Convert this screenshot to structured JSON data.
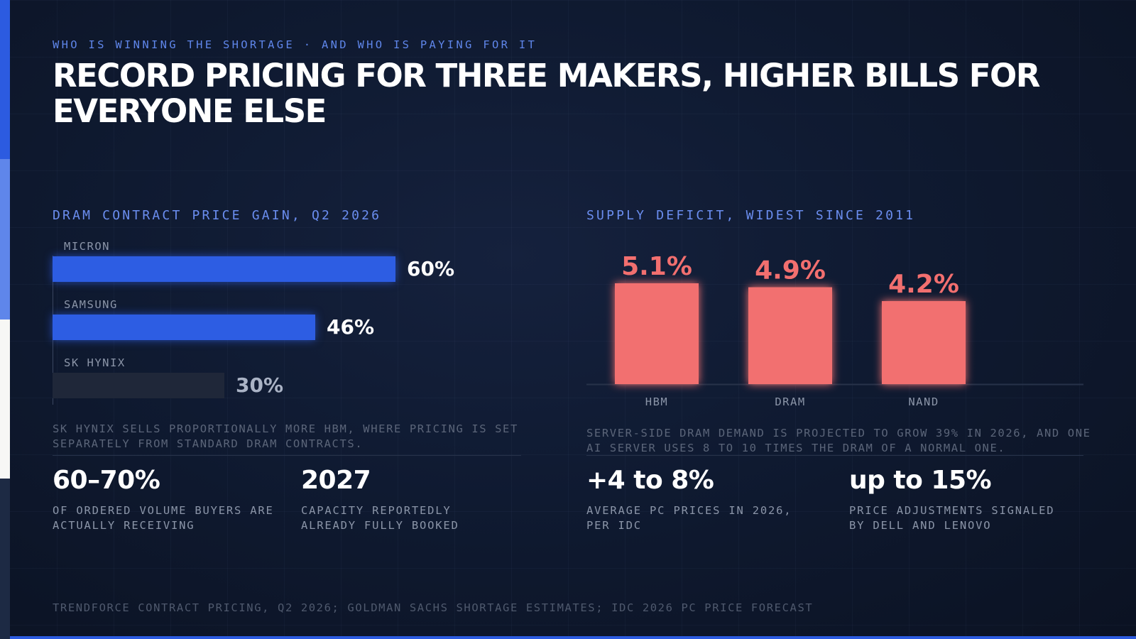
{
  "kicker": "WHO IS WINNING THE SHORTAGE · AND WHO IS PAYING FOR IT",
  "headline": "RECORD PRICING FOR THREE MAKERS, HIGHER BILLS FOR EVERYONE ELSE",
  "colors": {
    "accent_blue": "#2c5be0",
    "bar_blue": "#2d5de3",
    "bar_muted": "#1f2739",
    "deficit_red": "#f26f6f",
    "background": "#0f1a31"
  },
  "chart_data": [
    {
      "type": "bar",
      "orientation": "horizontal",
      "title": "DRAM CONTRACT PRICE GAIN, Q2 2026",
      "categories": [
        "MICRON",
        "SAMSUNG",
        "SK HYNIX"
      ],
      "values": [
        60,
        46,
        30
      ],
      "value_labels": [
        "60%",
        "46%",
        "30%"
      ],
      "unit": "%",
      "xlim": [
        0,
        77
      ]
    },
    {
      "type": "bar",
      "orientation": "vertical",
      "title": "SUPPLY DEFICIT, WIDEST SINCE 2011",
      "categories": [
        "HBM",
        "DRAM",
        "NAND"
      ],
      "values": [
        5.1,
        4.9,
        4.2
      ],
      "value_labels": [
        "5.1%",
        "4.9%",
        "4.2%"
      ],
      "unit": "%",
      "ylim": [
        0,
        5.1
      ]
    }
  ],
  "left_note": "SK HYNIX SELLS PROPORTIONALLY MORE HBM, WHERE PRICING IS SET SEPARATELY FROM STANDARD DRAM CONTRACTS.",
  "right_note": "SERVER-SIDE DRAM DEMAND IS PROJECTED TO GROW 39% IN 2026, AND ONE AI SERVER USES 8 TO 10 TIMES THE DRAM OF A NORMAL ONE.",
  "stats": [
    {
      "value": "60–70%",
      "label": "OF ORDERED VOLUME BUYERS ARE ACTUALLY RECEIVING"
    },
    {
      "value": "2027",
      "label": "CAPACITY REPORTEDLY ALREADY FULLY BOOKED"
    },
    {
      "value": "+4 to 8%",
      "label": "AVERAGE PC PRICES IN 2026, PER IDC"
    },
    {
      "value": "up to 15%",
      "label": "PRICE ADJUSTMENTS SIGNALED BY DELL AND LENOVO"
    }
  ],
  "source": "TRENDFORCE CONTRACT PRICING, Q2 2026; GOLDMAN SACHS SHORTAGE ESTIMATES; IDC 2026 PC PRICE FORECAST"
}
